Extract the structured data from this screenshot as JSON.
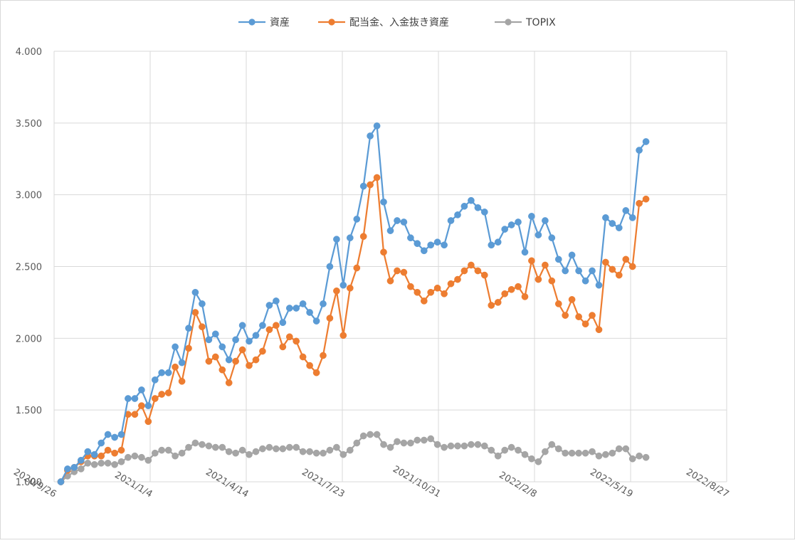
{
  "chart_data": {
    "type": "line",
    "legend_position": "top",
    "grid": true,
    "x_axis": {
      "type": "date",
      "ticks": [
        "2020/9/26",
        "2021/1/4",
        "2021/4/14",
        "2021/7/23",
        "2021/10/31",
        "2022/2/8",
        "2022/5/19",
        "2022/8/27"
      ],
      "range": [
        "2020/9/26",
        "2022/8/27"
      ]
    },
    "y_axis": {
      "ticks": [
        "1.000",
        "1.500",
        "2.000",
        "2.500",
        "3.000",
        "3.500",
        "4.000"
      ],
      "range": [
        1.0,
        4.0
      ]
    },
    "start_date": "2020-10-03",
    "step_days": 7,
    "series": [
      {
        "name": "資産",
        "color": "#5b9bd5",
        "values": [
          1.0,
          1.09,
          1.1,
          1.15,
          1.21,
          1.19,
          1.27,
          1.33,
          1.31,
          1.33,
          1.58,
          1.58,
          1.64,
          1.53,
          1.71,
          1.76,
          1.76,
          1.94,
          1.83,
          2.07,
          2.32,
          2.24,
          1.99,
          2.03,
          1.94,
          1.85,
          1.99,
          2.09,
          1.98,
          2.02,
          2.09,
          2.23,
          2.26,
          2.11,
          2.21,
          2.21,
          2.24,
          2.18,
          2.12,
          2.24,
          2.5,
          2.69,
          2.37,
          2.7,
          2.83,
          3.06,
          3.41,
          3.48,
          2.95,
          2.75,
          2.82,
          2.81,
          2.7,
          2.66,
          2.61,
          2.65,
          2.67,
          2.65,
          2.82,
          2.86,
          2.92,
          2.96,
          2.91,
          2.88,
          2.65,
          2.67,
          2.76,
          2.79,
          2.81,
          2.6,
          2.85,
          2.72,
          2.82,
          2.7,
          2.55,
          2.47,
          2.58,
          2.47,
          2.4,
          2.47,
          2.37,
          2.84,
          2.8,
          2.77,
          2.89,
          2.84,
          3.31,
          3.37
        ]
      },
      {
        "name": "配当金、入金抜き資産",
        "color": "#ed7d31",
        "values": [
          1.0,
          1.08,
          1.1,
          1.14,
          1.18,
          1.18,
          1.18,
          1.22,
          1.2,
          1.22,
          1.47,
          1.47,
          1.53,
          1.42,
          1.58,
          1.61,
          1.62,
          1.8,
          1.7,
          1.93,
          2.18,
          2.08,
          1.84,
          1.87,
          1.78,
          1.69,
          1.84,
          1.92,
          1.81,
          1.85,
          1.91,
          2.06,
          2.09,
          1.94,
          2.01,
          1.98,
          1.87,
          1.81,
          1.76,
          1.88,
          2.14,
          2.33,
          2.02,
          2.35,
          2.49,
          2.71,
          3.07,
          3.12,
          2.6,
          2.4,
          2.47,
          2.46,
          2.36,
          2.32,
          2.26,
          2.32,
          2.35,
          2.31,
          2.38,
          2.41,
          2.47,
          2.51,
          2.47,
          2.44,
          2.23,
          2.25,
          2.31,
          2.34,
          2.36,
          2.29,
          2.54,
          2.41,
          2.51,
          2.4,
          2.24,
          2.16,
          2.27,
          2.15,
          2.1,
          2.16,
          2.06,
          2.53,
          2.48,
          2.44,
          2.55,
          2.5,
          2.94,
          2.97
        ]
      },
      {
        "name": "TOPIX",
        "color": "#a5a5a5",
        "values": [
          1.0,
          1.04,
          1.07,
          1.09,
          1.13,
          1.12,
          1.13,
          1.13,
          1.12,
          1.14,
          1.17,
          1.18,
          1.17,
          1.15,
          1.2,
          1.22,
          1.22,
          1.18,
          1.2,
          1.24,
          1.27,
          1.26,
          1.25,
          1.24,
          1.24,
          1.21,
          1.2,
          1.22,
          1.19,
          1.21,
          1.23,
          1.24,
          1.23,
          1.23,
          1.24,
          1.24,
          1.21,
          1.21,
          1.2,
          1.2,
          1.22,
          1.24,
          1.19,
          1.22,
          1.27,
          1.32,
          1.33,
          1.33,
          1.26,
          1.24,
          1.28,
          1.27,
          1.27,
          1.29,
          1.29,
          1.3,
          1.26,
          1.24,
          1.25,
          1.25,
          1.25,
          1.26,
          1.26,
          1.25,
          1.22,
          1.18,
          1.22,
          1.24,
          1.22,
          1.19,
          1.16,
          1.14,
          1.21,
          1.26,
          1.23,
          1.2,
          1.2,
          1.2,
          1.2,
          1.21,
          1.18,
          1.19,
          1.2,
          1.23,
          1.23,
          1.16,
          1.18,
          1.17
        ]
      }
    ]
  }
}
